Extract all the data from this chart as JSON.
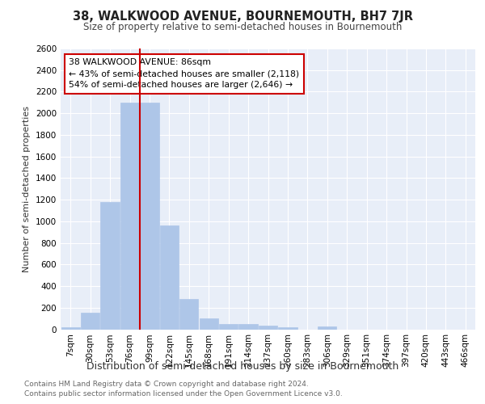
{
  "title": "38, WALKWOOD AVENUE, BOURNEMOUTH, BH7 7JR",
  "subtitle": "Size of property relative to semi-detached houses in Bournemouth",
  "xlabel": "Distribution of semi-detached houses by size in Bournemouth",
  "ylabel": "Number of semi-detached properties",
  "footer1": "Contains HM Land Registry data © Crown copyright and database right 2024.",
  "footer2": "Contains public sector information licensed under the Open Government Licence v3.0.",
  "categories": [
    "7sqm",
    "30sqm",
    "53sqm",
    "76sqm",
    "99sqm",
    "122sqm",
    "145sqm",
    "168sqm",
    "191sqm",
    "214sqm",
    "237sqm",
    "260sqm",
    "283sqm",
    "306sqm",
    "329sqm",
    "351sqm",
    "374sqm",
    "397sqm",
    "420sqm",
    "443sqm",
    "466sqm"
  ],
  "values": [
    20,
    150,
    1175,
    2100,
    2100,
    965,
    280,
    100,
    50,
    50,
    35,
    20,
    0,
    25,
    0,
    0,
    0,
    0,
    0,
    0,
    0
  ],
  "bar_color": "#aec6e8",
  "bar_edge_color": "#aec6e8",
  "vline_x": 3.5,
  "vline_color": "#cc0000",
  "annotation_line1": "38 WALKWOOD AVENUE: 86sqm",
  "annotation_line2": "← 43% of semi-detached houses are smaller (2,118)",
  "annotation_line3": "54% of semi-detached houses are larger (2,646) →",
  "annotation_box_color": "#ffffff",
  "annotation_box_edge_color": "#cc0000",
  "ylim": [
    0,
    2600
  ],
  "yticks": [
    0,
    200,
    400,
    600,
    800,
    1000,
    1200,
    1400,
    1600,
    1800,
    2000,
    2200,
    2400,
    2600
  ],
  "bg_color": "#e8eef8",
  "grid_color": "#ffffff"
}
